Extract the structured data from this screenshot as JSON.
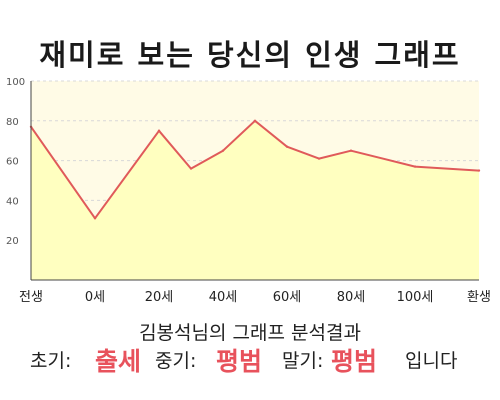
{
  "title": "재미로 보는 당신의 인생 그래프",
  "summary": "김봉석님의 그래프 분석결과",
  "results": {
    "early_label": "초기:",
    "early_value": "출세",
    "mid_label": "중기:",
    "mid_value": "평범",
    "late_label": "말기:",
    "late_value": "평범",
    "ending": "입니다"
  },
  "colors": {
    "line": "#e05a5a",
    "fill": "#ffffc0",
    "plot_bg": "#fffbe6",
    "grid": "#d8d8d8",
    "accent_text": "#e8525c"
  },
  "chart_data": {
    "type": "area",
    "x_tick_labels": [
      "전생",
      "0세",
      "20세",
      "40세",
      "60세",
      "80세",
      "100세",
      "환생"
    ],
    "y_ticks": [
      20,
      40,
      60,
      80,
      100
    ],
    "ylim": [
      0,
      100
    ],
    "xlim": [
      -20,
      120
    ],
    "x": [
      -20,
      0,
      20,
      30,
      40,
      50,
      60,
      70,
      80,
      100,
      120
    ],
    "y": [
      77,
      31,
      75,
      56,
      65,
      80,
      67,
      61,
      65,
      57,
      55
    ],
    "grid": true,
    "xlabel": "",
    "ylabel": ""
  }
}
